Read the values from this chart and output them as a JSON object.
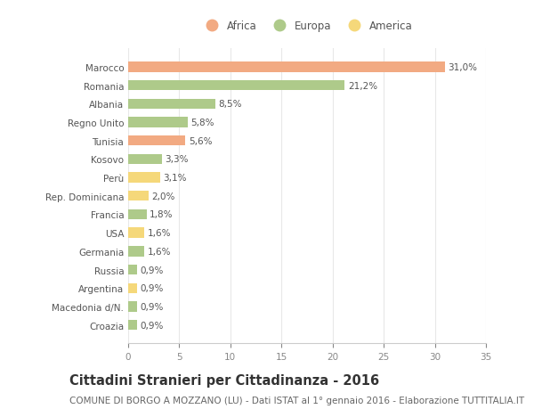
{
  "categories": [
    "Croazia",
    "Macedonia d/N.",
    "Argentina",
    "Russia",
    "Germania",
    "USA",
    "Francia",
    "Rep. Dominicana",
    "Perù",
    "Kosovo",
    "Tunisia",
    "Regno Unito",
    "Albania",
    "Romania",
    "Marocco"
  ],
  "values": [
    0.9,
    0.9,
    0.9,
    0.9,
    1.6,
    1.6,
    1.8,
    2.0,
    3.1,
    3.3,
    5.6,
    5.8,
    8.5,
    21.2,
    31.0
  ],
  "labels": [
    "0,9%",
    "0,9%",
    "0,9%",
    "0,9%",
    "1,6%",
    "1,6%",
    "1,8%",
    "2,0%",
    "3,1%",
    "3,3%",
    "5,6%",
    "5,8%",
    "8,5%",
    "21,2%",
    "31,0%"
  ],
  "continents": [
    "Europa",
    "Europa",
    "America",
    "Europa",
    "Europa",
    "America",
    "Europa",
    "America",
    "America",
    "Europa",
    "Africa",
    "Europa",
    "Europa",
    "Europa",
    "Africa"
  ],
  "colors": {
    "Africa": "#F2AA82",
    "Europa": "#AECA8A",
    "America": "#F5D87A"
  },
  "legend_labels": [
    "Africa",
    "Europa",
    "America"
  ],
  "legend_colors": [
    "#F2AA82",
    "#AECA8A",
    "#F5D87A"
  ],
  "title": "Cittadini Stranieri per Cittadinanza - 2016",
  "subtitle": "COMUNE DI BORGO A MOZZANO (LU) - Dati ISTAT al 1° gennaio 2016 - Elaborazione TUTTITALIA.IT",
  "xlim": [
    0,
    35
  ],
  "xticks": [
    0,
    5,
    10,
    15,
    20,
    25,
    30,
    35
  ],
  "background_color": "#FFFFFF",
  "grid_color": "#E8E8E8",
  "bar_height": 0.55,
  "title_fontsize": 10.5,
  "subtitle_fontsize": 7.5,
  "label_fontsize": 7.5,
  "tick_fontsize": 7.5,
  "legend_fontsize": 8.5
}
